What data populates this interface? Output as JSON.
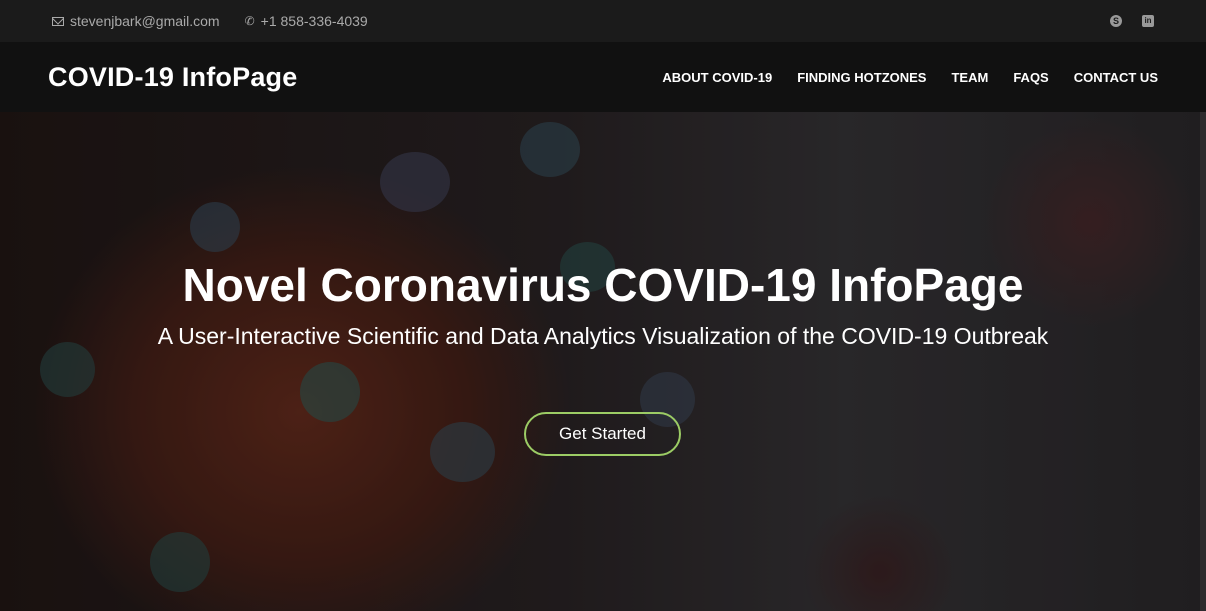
{
  "topbar": {
    "email": "stevenjbark@gmail.com",
    "phone": "+1 858-336-4039",
    "icons": {
      "email": "envelope-icon",
      "phone": "phone-icon",
      "skype": "skype-icon",
      "linkedin": "linkedin-icon"
    },
    "skype_glyph": "S",
    "linkedin_glyph": "in"
  },
  "navbar": {
    "brand": "COVID-19 InfoPage",
    "items": [
      {
        "label": "ABOUT COVID-19"
      },
      {
        "label": "FINDING HOTZONES"
      },
      {
        "label": "TEAM"
      },
      {
        "label": "FAQS"
      },
      {
        "label": "CONTACT US"
      }
    ]
  },
  "hero": {
    "title": "Novel Coronavirus COVID-19 InfoPage",
    "subtitle": "A User-Interactive Scientific and Data Analytics Visualization of the COVID-19 Outbreak",
    "cta_label": "Get Started"
  },
  "colors": {
    "topbar_bg": "#1b1b1b",
    "navbar_bg": "#111111",
    "cta_border": "#9ccc65",
    "text": "#ffffff"
  }
}
